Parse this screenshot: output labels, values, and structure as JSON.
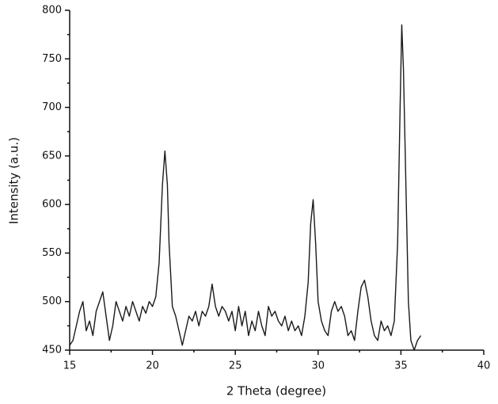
{
  "chart_data": {
    "type": "line",
    "x_label": "2 Theta (degree)",
    "y_label": "Intensity (a.u.)",
    "xlim": [
      15,
      40
    ],
    "xticks": [
      15,
      20,
      25,
      30,
      35,
      40
    ],
    "ylim": [
      450,
      800
    ],
    "yticks": [
      450,
      500,
      550,
      600,
      650,
      700,
      750,
      800
    ],
    "grid": false,
    "series": [
      {
        "color": "#1a1a1a",
        "x": [
          15.0,
          15.2,
          15.4,
          15.6,
          15.8,
          16.0,
          16.2,
          16.4,
          16.6,
          16.8,
          17.0,
          17.2,
          17.4,
          17.6,
          17.8,
          18.0,
          18.2,
          18.4,
          18.6,
          18.8,
          19.0,
          19.2,
          19.4,
          19.6,
          19.8,
          20.0,
          20.2,
          20.4,
          20.6,
          20.75,
          20.9,
          21.0,
          21.2,
          21.4,
          21.6,
          21.8,
          22.0,
          22.2,
          22.4,
          22.6,
          22.8,
          23.0,
          23.2,
          23.4,
          23.6,
          23.8,
          24.0,
          24.2,
          24.4,
          24.6,
          24.8,
          25.0,
          25.2,
          25.4,
          25.6,
          25.8,
          26.0,
          26.2,
          26.4,
          26.6,
          26.8,
          27.0,
          27.2,
          27.4,
          27.6,
          27.8,
          28.0,
          28.2,
          28.4,
          28.6,
          28.8,
          29.0,
          29.2,
          29.4,
          29.55,
          29.7,
          29.85,
          30.0,
          30.2,
          30.4,
          30.6,
          30.8,
          31.0,
          31.2,
          31.4,
          31.6,
          31.8,
          32.0,
          32.2,
          32.4,
          32.6,
          32.8,
          33.0,
          33.2,
          33.4,
          33.6,
          33.8,
          34.0,
          34.2,
          34.4,
          34.6,
          34.8,
          34.95,
          35.05,
          35.15,
          35.3,
          35.45,
          35.6,
          35.8,
          36.0,
          36.2
        ],
        "values": [
          455,
          460,
          475,
          490,
          500,
          470,
          480,
          465,
          490,
          500,
          510,
          485,
          460,
          475,
          500,
          490,
          480,
          495,
          485,
          500,
          490,
          480,
          495,
          488,
          500,
          495,
          505,
          540,
          620,
          655,
          620,
          560,
          495,
          485,
          470,
          455,
          470,
          485,
          480,
          490,
          475,
          490,
          485,
          495,
          518,
          495,
          485,
          495,
          490,
          480,
          490,
          470,
          495,
          475,
          490,
          465,
          480,
          470,
          490,
          475,
          465,
          495,
          485,
          490,
          480,
          475,
          485,
          470,
          480,
          470,
          475,
          465,
          485,
          520,
          580,
          605,
          560,
          500,
          480,
          470,
          465,
          490,
          500,
          490,
          495,
          485,
          465,
          470,
          460,
          490,
          515,
          522,
          505,
          480,
          465,
          460,
          480,
          470,
          475,
          465,
          480,
          560,
          700,
          785,
          740,
          620,
          500,
          460,
          450,
          460,
          465
        ]
      }
    ]
  }
}
